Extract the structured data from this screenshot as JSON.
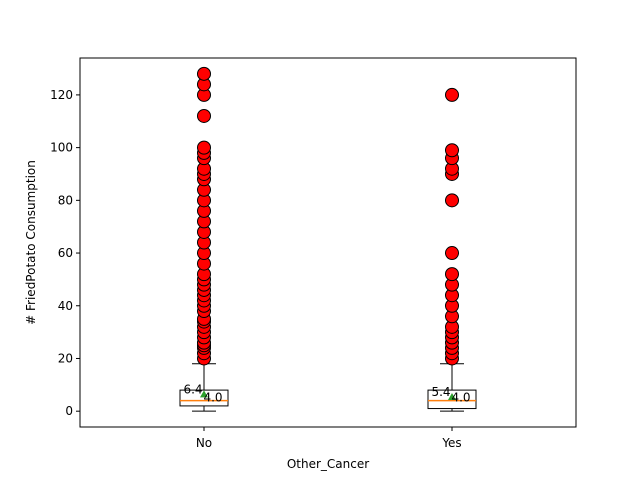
{
  "chart_data": {
    "type": "box",
    "xlabel": "Other_Cancer",
    "ylabel": "# FriedPotato Consumption",
    "ylim": [
      -6,
      134
    ],
    "yticks": [
      0,
      20,
      40,
      60,
      80,
      100,
      120
    ],
    "categories": [
      "No",
      "Yes"
    ],
    "boxes": [
      {
        "category": "No",
        "whisker_low": 0,
        "q1": 2,
        "median": 4,
        "q3": 8,
        "whisker_high": 18,
        "mean": 6.4,
        "mean_label": "6.4",
        "median_label": "4.0",
        "outliers": [
          20,
          22,
          24,
          25,
          26,
          28,
          30,
          32,
          34,
          35,
          38,
          40,
          42,
          44,
          46,
          48,
          50,
          52,
          56,
          60,
          64,
          68,
          72,
          76,
          80,
          84,
          88,
          90,
          92,
          96,
          98,
          100,
          112,
          120,
          124,
          128
        ]
      },
      {
        "category": "Yes",
        "whisker_low": 0,
        "q1": 1,
        "median": 4,
        "q3": 8,
        "whisker_high": 18,
        "mean": 5.4,
        "mean_label": "5.4",
        "median_label": "4.0",
        "outliers": [
          20,
          22,
          24,
          26,
          28,
          30,
          32,
          36,
          40,
          44,
          48,
          52,
          60,
          80,
          90,
          92,
          96,
          99,
          120
        ]
      }
    ],
    "colors": {
      "box": "#000000",
      "median": "#ff7f0e",
      "mean_marker": "#2ca02c",
      "outlier_fill": "#ff0000",
      "outlier_edge": "#000000"
    }
  }
}
